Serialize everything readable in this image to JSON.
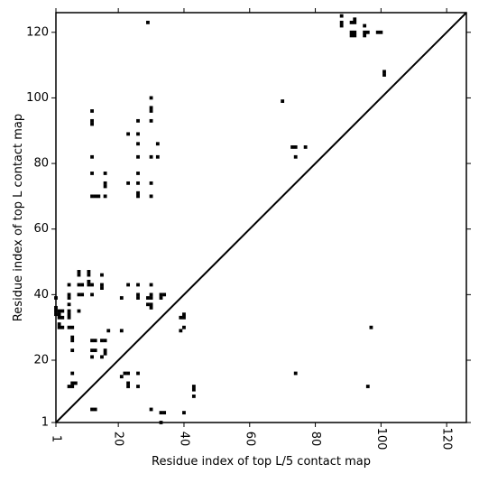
{
  "chart_data": {
    "type": "scatter",
    "title": "",
    "xlabel": "Residue index of top L/5 contact map",
    "ylabel": "Residue index of top L contact map",
    "xlim": [
      1,
      126
    ],
    "ylim": [
      1,
      126
    ],
    "x_ticks": [
      1,
      20,
      40,
      60,
      80,
      100,
      120
    ],
    "y_ticks": [
      1,
      20,
      40,
      60,
      80,
      100,
      120
    ],
    "x_tick_labels": [
      "1",
      "20",
      "40",
      "60",
      "80",
      "100",
      "120"
    ],
    "y_tick_labels": [
      "1",
      "20",
      "40",
      "60",
      "80",
      "100",
      "120"
    ],
    "grid": false,
    "marker": "square",
    "point_color": "#000000",
    "diagonal": {
      "from": [
        1,
        1
      ],
      "to": [
        126,
        126
      ],
      "color": "#000000"
    },
    "series": [
      {
        "points": [
          [
            29,
            123
          ],
          [
            30,
            100
          ],
          [
            30,
            97
          ],
          [
            30,
            96
          ],
          [
            12,
            96
          ],
          [
            12,
            93
          ],
          [
            12,
            92
          ],
          [
            26,
            93
          ],
          [
            30,
            93
          ],
          [
            23,
            89
          ],
          [
            26,
            89
          ],
          [
            32,
            86
          ],
          [
            26,
            86
          ],
          [
            12,
            82
          ],
          [
            26,
            82
          ],
          [
            30,
            82
          ],
          [
            32,
            82
          ],
          [
            12,
            77
          ],
          [
            16,
            77
          ],
          [
            26,
            77
          ],
          [
            23,
            74
          ],
          [
            26,
            74
          ],
          [
            30,
            74
          ],
          [
            16,
            74
          ],
          [
            16,
            73
          ],
          [
            12,
            70
          ],
          [
            13,
            70
          ],
          [
            14,
            70
          ],
          [
            16,
            70
          ],
          [
            26,
            71
          ],
          [
            26,
            70
          ],
          [
            30,
            70
          ],
          [
            1,
            39
          ],
          [
            1,
            36
          ],
          [
            1,
            35
          ],
          [
            1,
            34
          ],
          [
            2,
            35
          ],
          [
            2,
            34
          ],
          [
            2,
            33
          ],
          [
            3,
            35
          ],
          [
            3,
            33
          ],
          [
            2,
            31
          ],
          [
            2,
            30
          ],
          [
            3,
            30
          ],
          [
            5,
            43
          ],
          [
            5,
            40
          ],
          [
            5,
            39
          ],
          [
            5,
            37
          ],
          [
            5,
            35
          ],
          [
            5,
            34
          ],
          [
            5,
            33
          ],
          [
            5,
            30
          ],
          [
            6,
            30
          ],
          [
            6,
            27
          ],
          [
            6,
            26
          ],
          [
            6,
            23
          ],
          [
            8,
            47
          ],
          [
            8,
            46
          ],
          [
            8,
            43
          ],
          [
            9,
            43
          ],
          [
            8,
            40
          ],
          [
            9,
            40
          ],
          [
            8,
            35
          ],
          [
            11,
            47
          ],
          [
            11,
            46
          ],
          [
            11,
            44
          ],
          [
            11,
            43
          ],
          [
            12,
            43
          ],
          [
            12,
            40
          ],
          [
            15,
            46
          ],
          [
            15,
            43
          ],
          [
            15,
            42
          ],
          [
            12,
            26
          ],
          [
            13,
            26
          ],
          [
            15,
            26
          ],
          [
            16,
            26
          ],
          [
            12,
            23
          ],
          [
            13,
            23
          ],
          [
            16,
            23
          ],
          [
            16,
            22
          ],
          [
            12,
            21
          ],
          [
            15,
            21
          ],
          [
            17,
            29
          ],
          [
            21,
            39
          ],
          [
            21,
            29
          ],
          [
            23,
            43
          ],
          [
            26,
            43
          ],
          [
            30,
            43
          ],
          [
            26,
            40
          ],
          [
            26,
            39
          ],
          [
            29,
            39
          ],
          [
            30,
            40
          ],
          [
            30,
            39
          ],
          [
            33,
            40
          ],
          [
            34,
            40
          ],
          [
            33,
            39
          ],
          [
            29,
            37
          ],
          [
            30,
            37
          ],
          [
            30,
            36
          ],
          [
            40,
            34
          ],
          [
            40,
            33
          ],
          [
            39,
            33
          ],
          [
            39,
            29
          ],
          [
            40,
            30
          ],
          [
            6,
            16
          ],
          [
            5,
            12
          ],
          [
            6,
            12
          ],
          [
            7,
            13
          ],
          [
            6,
            13
          ],
          [
            21,
            15
          ],
          [
            22,
            16
          ],
          [
            23,
            16
          ],
          [
            23,
            13
          ],
          [
            23,
            12
          ],
          [
            26,
            16
          ],
          [
            26,
            12
          ],
          [
            12,
            5
          ],
          [
            13,
            5
          ],
          [
            30,
            5
          ],
          [
            33,
            4
          ],
          [
            34,
            4
          ],
          [
            33,
            1
          ],
          [
            40,
            4
          ],
          [
            43,
            12
          ],
          [
            43,
            11
          ],
          [
            43,
            9
          ],
          [
            88,
            125
          ],
          [
            88,
            123
          ],
          [
            88,
            122
          ],
          [
            91,
            123
          ],
          [
            92,
            124
          ],
          [
            92,
            123
          ],
          [
            95,
            122
          ],
          [
            91,
            120
          ],
          [
            92,
            120
          ],
          [
            91,
            119
          ],
          [
            92,
            119
          ],
          [
            95,
            120
          ],
          [
            96,
            120
          ],
          [
            95,
            119
          ],
          [
            99,
            120
          ],
          [
            100,
            120
          ],
          [
            101,
            108
          ],
          [
            101,
            107
          ],
          [
            70,
            99
          ],
          [
            73,
            85
          ],
          [
            74,
            85
          ],
          [
            77,
            85
          ],
          [
            74,
            82
          ],
          [
            97,
            30
          ],
          [
            74,
            16
          ],
          [
            96,
            12
          ]
        ]
      }
    ]
  }
}
